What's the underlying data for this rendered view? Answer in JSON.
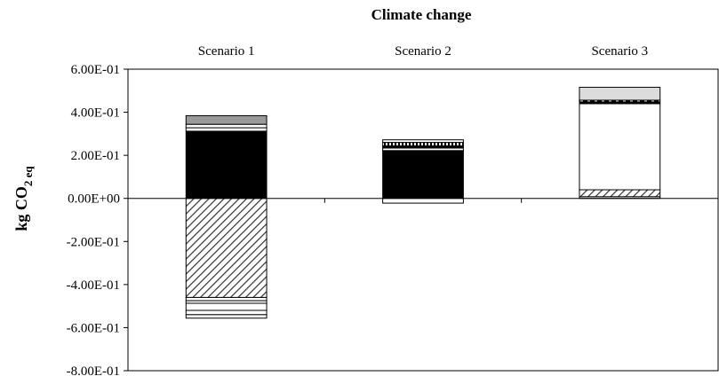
{
  "chart_data": {
    "type": "bar",
    "stacked": true,
    "title": "Climate change",
    "ylabel_main": "kg CO",
    "ylabel_sub": "2 eq",
    "categories": [
      "Scenario 1",
      "Scenario 2",
      "Scenario 3"
    ],
    "category_position": "top",
    "ylim": [
      -0.8,
      0.6
    ],
    "yticks": [
      {
        "value": 0.6,
        "label": "6.00E-01"
      },
      {
        "value": 0.4,
        "label": "4.00E-01"
      },
      {
        "value": 0.2,
        "label": "2.00E-01"
      },
      {
        "value": 0.0,
        "label": "0.00E+00"
      },
      {
        "value": -0.2,
        "label": "-2.00E-01"
      },
      {
        "value": -0.4,
        "label": "-4.00E-01"
      },
      {
        "value": -0.6,
        "label": "-6.00E-01"
      },
      {
        "value": -0.8,
        "label": "-8.00E-01"
      }
    ],
    "grid": false,
    "legend": "none",
    "stacks": [
      {
        "category": "Scenario 1",
        "positive": [
          {
            "value": 0.312,
            "fill": "black"
          },
          {
            "value": 0.016,
            "fill": "white"
          },
          {
            "value": 0.016,
            "fill": "white"
          },
          {
            "value": 0.04,
            "fill": "darkgray"
          }
        ],
        "negative": [
          {
            "value": -0.46,
            "fill": "hatch"
          },
          {
            "value": -0.015,
            "fill": "white"
          },
          {
            "value": -0.012,
            "fill": "white"
          },
          {
            "value": -0.033,
            "fill": "white"
          },
          {
            "value": -0.02,
            "fill": "white"
          },
          {
            "value": -0.016,
            "fill": "white"
          }
        ]
      },
      {
        "category": "Scenario 2",
        "positive": [
          {
            "value": 0.222,
            "fill": "black"
          },
          {
            "value": 0.012,
            "fill": "white"
          },
          {
            "value": 0.01,
            "fill": "black"
          },
          {
            "value": 0.016,
            "fill": "dots"
          },
          {
            "value": 0.012,
            "fill": "white"
          }
        ],
        "negative": [
          {
            "value": -0.022,
            "fill": "white"
          }
        ]
      },
      {
        "category": "Scenario 3",
        "positive": [
          {
            "value": 0.008,
            "fill": "white"
          },
          {
            "value": 0.032,
            "fill": "hatch"
          },
          {
            "value": 0.4,
            "fill": "white"
          },
          {
            "value": 0.008,
            "fill": "black"
          },
          {
            "value": 0.008,
            "fill": "dashes"
          },
          {
            "value": 0.06,
            "fill": "lightgray"
          }
        ],
        "negative": []
      }
    ],
    "colors": {
      "black": "#000000",
      "white": "#ffffff",
      "darkgray": "#9a9a9a",
      "lightgray": "#dcdcdc",
      "axis": "#000000"
    }
  }
}
